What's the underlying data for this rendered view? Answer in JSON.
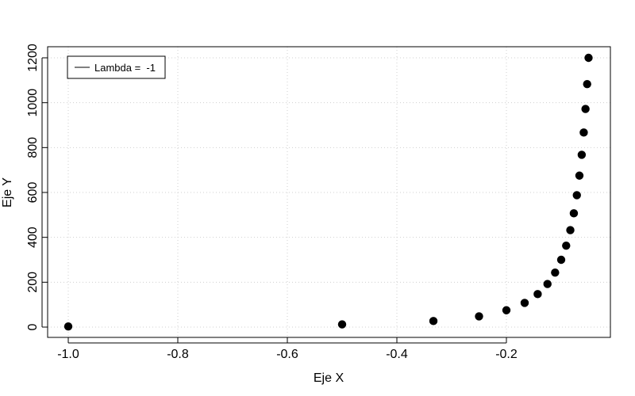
{
  "chart_data": {
    "type": "scatter",
    "title": "",
    "xlabel": "Eje X",
    "ylabel": "Eje Y",
    "xlim": [
      -1.0,
      -0.05
    ],
    "ylim": [
      0,
      1200
    ],
    "x_ticks": [
      -1.0,
      -0.8,
      -0.6,
      -0.4,
      -0.2
    ],
    "x_tick_labels": [
      "-1.0",
      "-0.8",
      "-0.6",
      "-0.4",
      "-0.2"
    ],
    "y_ticks": [
      0,
      200,
      400,
      600,
      800,
      1000,
      1200
    ],
    "y_tick_labels": [
      "0",
      "200",
      "400",
      "600",
      "800",
      "1000",
      "1200"
    ],
    "grid": true,
    "legend_position": "top-left",
    "legend": {
      "label": "Lambda =  -1"
    },
    "series": [
      {
        "x": [
          -1.0,
          -0.5,
          -0.3333,
          -0.25,
          -0.2,
          -0.1667,
          -0.1429,
          -0.125,
          -0.1111,
          -0.1,
          -0.0909,
          -0.0833,
          -0.0769,
          -0.0714,
          -0.0667,
          -0.0625,
          -0.0588,
          -0.0556,
          -0.0526,
          -0.05
        ],
        "y": [
          3,
          12,
          27,
          48,
          75,
          108,
          147,
          192,
          243,
          300,
          363,
          432,
          507,
          588,
          675,
          768,
          867,
          972,
          1083,
          1200
        ]
      }
    ]
  }
}
